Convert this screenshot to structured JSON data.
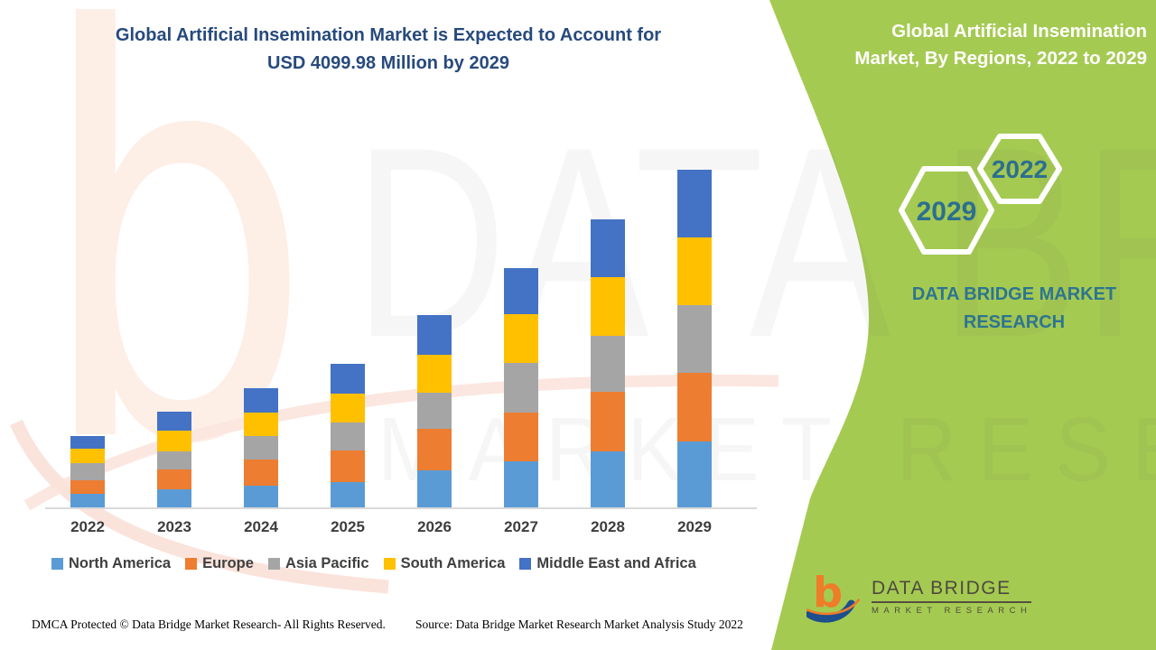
{
  "header": {
    "title_line1": "Global Artificial Insemination Market is Expected to Account for",
    "title_line2": "USD 4099.98 Million by 2029"
  },
  "side_panel": {
    "title_line1": "Global Artificial Insemination",
    "title_line2": "Market, By Regions, 2022 to 2029",
    "hexagon_back_year": "2022",
    "hexagon_front_year": "2029",
    "brand_line1": "DATA BRIDGE MARKET",
    "brand_line2": "RESEARCH",
    "panel_color": "#a5ca52"
  },
  "watermarks": {
    "big_letter": "b",
    "text_top": "DATA BRIDGE",
    "text_bottom": "MARKET RESEARCH"
  },
  "chart_data": {
    "type": "bar",
    "stacked": true,
    "title": "Global Artificial Insemination Market, By Regions, 2022 to 2029",
    "unit": "USD Million",
    "categories": [
      "2022",
      "2023",
      "2024",
      "2025",
      "2026",
      "2027",
      "2028",
      "2029"
    ],
    "series": [
      {
        "name": "North America",
        "color": "#5B9BD5",
        "values": [
          175,
          230,
          275,
          320,
          460,
          570,
          690,
          810
        ]
      },
      {
        "name": "Europe",
        "color": "#ED7D31",
        "values": [
          165,
          240,
          315,
          380,
          500,
          590,
          720,
          830
        ]
      },
      {
        "name": "Asia Pacific",
        "color": "#A5A5A5",
        "values": [
          205,
          220,
          285,
          340,
          440,
          600,
          680,
          820
        ]
      },
      {
        "name": "South America",
        "color": "#FFC000",
        "values": [
          175,
          250,
          285,
          350,
          460,
          590,
          710,
          820
        ]
      },
      {
        "name": "Middle East and Africa",
        "color": "#4472C4",
        "values": [
          155,
          230,
          295,
          360,
          480,
          560,
          700,
          820
        ]
      }
    ],
    "totals_estimated": [
      875,
      1170,
      1455,
      1750,
      2340,
      2910,
      3500,
      4100
    ],
    "ylim": [
      0,
      4400
    ],
    "y_axis_visible": false,
    "gridlines": false,
    "legend_position": "bottom",
    "note": "Segment values estimated from bar heights; 2029 total anchored to USD 4099.98 Million stated in title"
  },
  "logo": {
    "name_line1": "DATA BRIDGE",
    "name_line2": "MARKET RESEARCH"
  },
  "footer": {
    "dmca": "DMCA Protected © Data Bridge Market Research- All Rights Reserved.",
    "source": "Source: Data Bridge Market Research Market Analysis Study 2022"
  }
}
